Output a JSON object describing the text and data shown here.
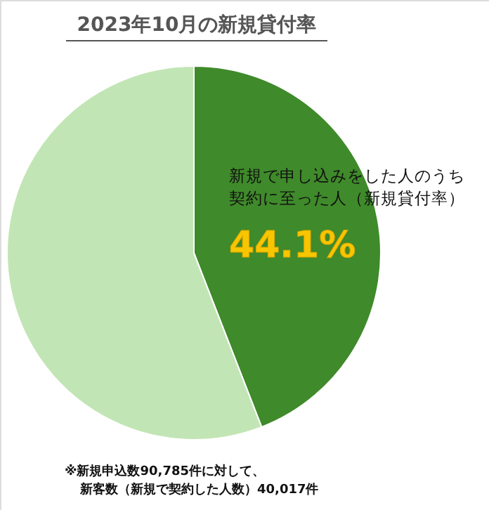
{
  "chart_data": {
    "type": "pie",
    "title": "2023年10月の新規貸付率",
    "categories": [
      "新規で申し込みをした人のうち契約に至った人（新規貸付率）",
      null
    ],
    "values": [
      44.1,
      55.9
    ],
    "colors": [
      "#3f8a2a",
      "#c2e5b5"
    ],
    "value_labels": [
      "44.1%",
      null
    ],
    "annotations": [
      "※新規申込数90,785件に対して、新客数（新規で契約した人数）40,017件"
    ]
  }
}
